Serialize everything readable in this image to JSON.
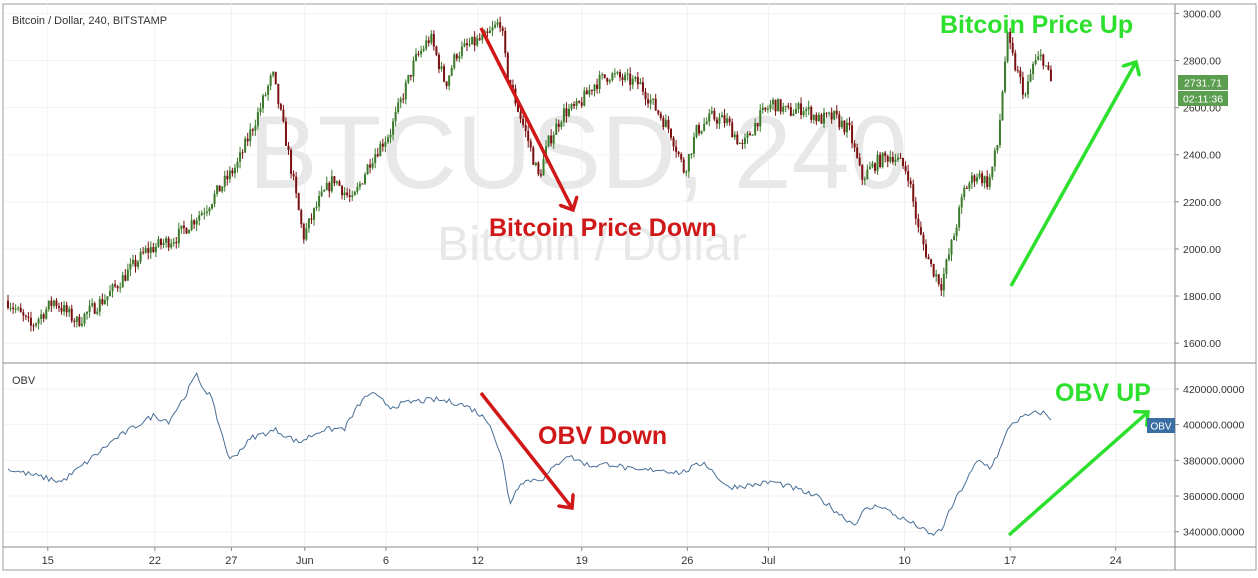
{
  "header": {
    "symbol_label": "Bitcoin / Dollar, 240, BITSTAMP",
    "indicator_label": "OBV"
  },
  "watermark": {
    "main": "BTCUSD, 240",
    "sub": "Bitcoin / Dollar"
  },
  "annotations": {
    "price_down": "Bitcoin Price Down",
    "price_up": "Bitcoin Price Up",
    "obv_down": "OBV Down",
    "obv_up": "OBV UP"
  },
  "price_badges": {
    "last_price": "2731.71",
    "countdown": "02:11:36",
    "obv_badge": "OBV"
  },
  "colors": {
    "up_candle": "#3a7a2a",
    "down_candle": "#7a1010",
    "obv_line": "#4a6f97",
    "arrow_down": "#d01818",
    "arrow_up": "#2ee02e",
    "price_badge": "#5c9e4f",
    "obv_badge": "#3b6fa3",
    "watermark": "#e6e6e6",
    "grid": "#f2f2f2",
    "axis_text": "#333333"
  },
  "chart_data": [
    {
      "type": "candlestick",
      "title": "Bitcoin / Dollar, 240, BITSTAMP",
      "ylim": [
        1520,
        3040
      ],
      "y_ticks": [
        "3000.00",
        "2800.00",
        "2600.00",
        "2400.00",
        "2200.00",
        "2000.00",
        "1800.00",
        "1600.00"
      ],
      "x_ticks": [
        "15",
        "22",
        "27",
        "Jun",
        "6",
        "12",
        "19",
        "26",
        "Jul",
        "10",
        "17",
        "24"
      ],
      "close_anchors": [
        {
          "day": 0,
          "close": 1780
        },
        {
          "day": 1.5,
          "close": 1670
        },
        {
          "day": 3,
          "close": 1780
        },
        {
          "day": 4.5,
          "close": 1690
        },
        {
          "day": 6.5,
          "close": 1800
        },
        {
          "day": 9,
          "close": 1990
        },
        {
          "day": 11,
          "close": 2050
        },
        {
          "day": 13,
          "close": 2180
        },
        {
          "day": 15,
          "close": 2360
        },
        {
          "day": 16.5,
          "close": 2600
        },
        {
          "day": 17.3,
          "close": 2740
        },
        {
          "day": 18.2,
          "close": 2450
        },
        {
          "day": 19.3,
          "close": 2050
        },
        {
          "day": 20.3,
          "close": 2200
        },
        {
          "day": 21.3,
          "close": 2300
        },
        {
          "day": 22.5,
          "close": 2200
        },
        {
          "day": 23.7,
          "close": 2380
        },
        {
          "day": 25,
          "close": 2500
        },
        {
          "day": 25.8,
          "close": 2650
        },
        {
          "day": 26.6,
          "close": 2800
        },
        {
          "day": 27.6,
          "close": 2900
        },
        {
          "day": 28.6,
          "close": 2700
        },
        {
          "day": 29.3,
          "close": 2830
        },
        {
          "day": 30.3,
          "close": 2870
        },
        {
          "day": 31.3,
          "close": 2900
        },
        {
          "day": 32.2,
          "close": 2970
        },
        {
          "day": 32.6,
          "close": 2750
        },
        {
          "day": 33.3,
          "close": 2600
        },
        {
          "day": 34,
          "close": 2460
        },
        {
          "day": 34.7,
          "close": 2300
        },
        {
          "day": 35.3,
          "close": 2450
        },
        {
          "day": 36.3,
          "close": 2580
        },
        {
          "day": 37.2,
          "close": 2600
        },
        {
          "day": 38.3,
          "close": 2700
        },
        {
          "day": 39.3,
          "close": 2740
        },
        {
          "day": 40.3,
          "close": 2720
        },
        {
          "day": 41.3,
          "close": 2700
        },
        {
          "day": 42.3,
          "close": 2600
        },
        {
          "day": 43.3,
          "close": 2500
        },
        {
          "day": 44.2,
          "close": 2330
        },
        {
          "day": 45,
          "close": 2500
        },
        {
          "day": 46,
          "close": 2560
        },
        {
          "day": 47,
          "close": 2540
        },
        {
          "day": 48,
          "close": 2430
        },
        {
          "day": 49,
          "close": 2550
        },
        {
          "day": 50,
          "close": 2620
        },
        {
          "day": 51,
          "close": 2580
        },
        {
          "day": 52,
          "close": 2600
        },
        {
          "day": 53,
          "close": 2550
        },
        {
          "day": 54,
          "close": 2560
        },
        {
          "day": 55,
          "close": 2500
        },
        {
          "day": 55.8,
          "close": 2300
        },
        {
          "day": 56.8,
          "close": 2370
        },
        {
          "day": 57.8,
          "close": 2400
        },
        {
          "day": 58.8,
          "close": 2330
        },
        {
          "day": 59.5,
          "close": 2080
        },
        {
          "day": 60.3,
          "close": 1930
        },
        {
          "day": 61,
          "close": 1850
        },
        {
          "day": 61.8,
          "close": 2050
        },
        {
          "day": 62.5,
          "close": 2250
        },
        {
          "day": 63.3,
          "close": 2320
        },
        {
          "day": 64.1,
          "close": 2280
        },
        {
          "day": 64.7,
          "close": 2450
        },
        {
          "day": 65.3,
          "close": 2900
        },
        {
          "day": 65.8,
          "close": 2780
        },
        {
          "day": 66.5,
          "close": 2650
        },
        {
          "day": 67,
          "close": 2780
        },
        {
          "day": 67.6,
          "close": 2820
        },
        {
          "day": 68.2,
          "close": 2700
        }
      ]
    },
    {
      "type": "line",
      "title": "OBV",
      "ylim": [
        332000,
        434000
      ],
      "y_ticks": [
        "420000.0000",
        "400000.0000",
        "380000.0000",
        "360000.0000",
        "340000.0000"
      ],
      "x_ticks": [
        "15",
        "22",
        "27",
        "Jun",
        "6",
        "12",
        "19",
        "26",
        "Jul",
        "10",
        "17",
        "24"
      ],
      "series": [
        {
          "points": [
            {
              "day": 0,
              "value": 375000
            },
            {
              "day": 3.5,
              "value": 368000
            },
            {
              "day": 5,
              "value": 378000
            },
            {
              "day": 7,
              "value": 392000
            },
            {
              "day": 8.5,
              "value": 400000
            },
            {
              "day": 9.5,
              "value": 405000
            },
            {
              "day": 10.5,
              "value": 402000
            },
            {
              "day": 11.5,
              "value": 415000
            },
            {
              "day": 12.3,
              "value": 428000
            },
            {
              "day": 12.8,
              "value": 420000
            },
            {
              "day": 13.2,
              "value": 417000
            },
            {
              "day": 14.5,
              "value": 380000
            },
            {
              "day": 16,
              "value": 393000
            },
            {
              "day": 17.5,
              "value": 397000
            },
            {
              "day": 19,
              "value": 390000
            },
            {
              "day": 20.5,
              "value": 397000
            },
            {
              "day": 22,
              "value": 398000
            },
            {
              "day": 23,
              "value": 412000
            },
            {
              "day": 23.7,
              "value": 418000
            },
            {
              "day": 25,
              "value": 410000
            },
            {
              "day": 26.5,
              "value": 413000
            },
            {
              "day": 28,
              "value": 414000
            },
            {
              "day": 29.5,
              "value": 412000
            },
            {
              "day": 30.5,
              "value": 408000
            },
            {
              "day": 31.5,
              "value": 401000
            },
            {
              "day": 32.3,
              "value": 380000
            },
            {
              "day": 32.8,
              "value": 356000
            },
            {
              "day": 33.5,
              "value": 368000
            },
            {
              "day": 35,
              "value": 370000
            },
            {
              "day": 36.5,
              "value": 383000
            },
            {
              "day": 38,
              "value": 377000
            },
            {
              "day": 39.5,
              "value": 378000
            },
            {
              "day": 41,
              "value": 374000
            },
            {
              "day": 42.5,
              "value": 375000
            },
            {
              "day": 44,
              "value": 373000
            },
            {
              "day": 45.5,
              "value": 379000
            },
            {
              "day": 47,
              "value": 365000
            },
            {
              "day": 48.5,
              "value": 366000
            },
            {
              "day": 50,
              "value": 368000
            },
            {
              "day": 51.5,
              "value": 364000
            },
            {
              "day": 53,
              "value": 359000
            },
            {
              "day": 54.5,
              "value": 349000
            },
            {
              "day": 55.3,
              "value": 344000
            },
            {
              "day": 56,
              "value": 352000
            },
            {
              "day": 57,
              "value": 355000
            },
            {
              "day": 58,
              "value": 349000
            },
            {
              "day": 58.8,
              "value": 346000
            },
            {
              "day": 59.5,
              "value": 343000
            },
            {
              "day": 60.3,
              "value": 338000
            },
            {
              "day": 61,
              "value": 341000
            },
            {
              "day": 61.8,
              "value": 356000
            },
            {
              "day": 62.6,
              "value": 368000
            },
            {
              "day": 63.4,
              "value": 380000
            },
            {
              "day": 64.2,
              "value": 376000
            },
            {
              "day": 64.8,
              "value": 385000
            },
            {
              "day": 65.5,
              "value": 400000
            },
            {
              "day": 66.3,
              "value": 404000
            },
            {
              "day": 67,
              "value": 406000
            },
            {
              "day": 67.6,
              "value": 407000
            },
            {
              "day": 68.2,
              "value": 403000
            }
          ]
        }
      ]
    }
  ]
}
